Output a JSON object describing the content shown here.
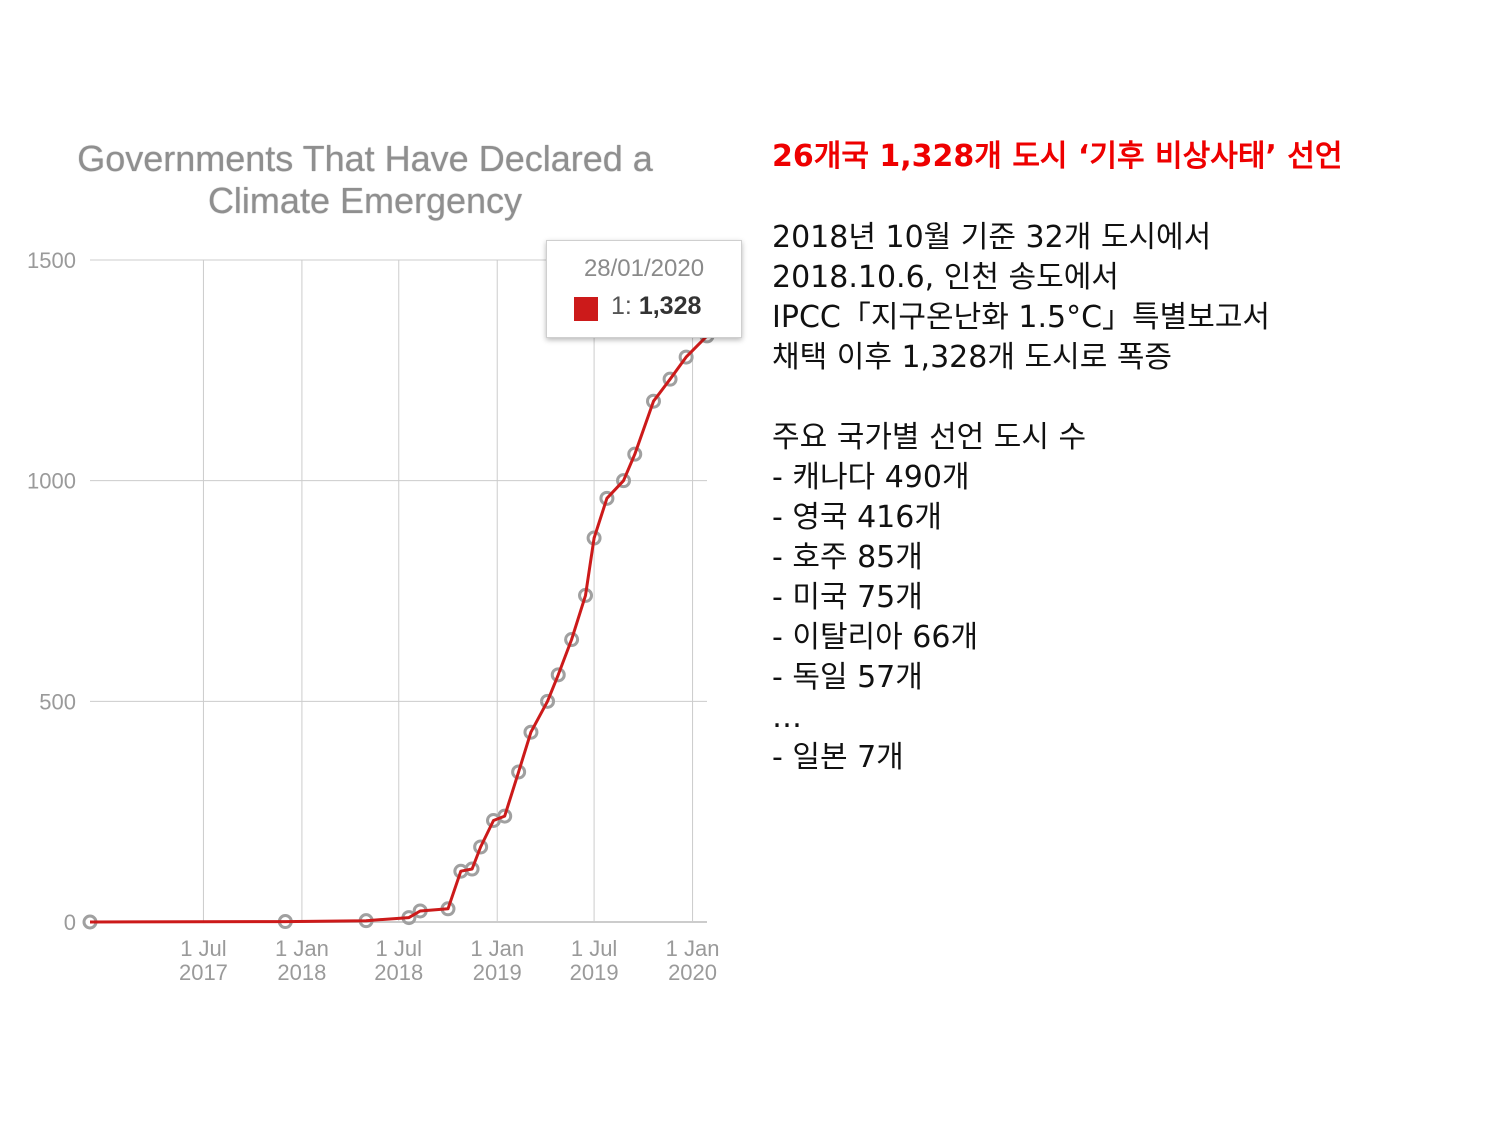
{
  "chart": {
    "title_line1": "Governments That Have Declared a",
    "title_line2": "Climate Emergency",
    "tooltip": {
      "date": "28/01/2020",
      "series": "1:",
      "value": "1,328"
    },
    "colors": {
      "line": "#cc1a1a",
      "points": "#a0a0a0",
      "grid": "#cccccc",
      "tick_text": "#9a9a9a"
    }
  },
  "chart_data": {
    "type": "line",
    "title": "Governments That Have Declared a Climate Emergency",
    "xlabel": "",
    "ylabel": "",
    "ylim": [
      0,
      1500
    ],
    "yticks": [
      0,
      500,
      1000,
      1500
    ],
    "ytick_labels": [
      "0",
      "500",
      "1000",
      "1500"
    ],
    "xlim": [
      "2016-12-01",
      "2020-01-28"
    ],
    "xticks": [
      "2017-07-01",
      "2018-01-01",
      "2018-07-01",
      "2019-01-01",
      "2019-07-01",
      "2020-01-01"
    ],
    "xtick_labels": [
      [
        "1 Jul",
        "2017"
      ],
      [
        "1 Jan",
        "2018"
      ],
      [
        "1 Jul",
        "2018"
      ],
      [
        "1 Jan",
        "2019"
      ],
      [
        "1 Jul",
        "2019"
      ],
      [
        "1 Jan",
        "2020"
      ]
    ],
    "grid": true,
    "legend": "none",
    "series": [
      {
        "name": "1",
        "x": [
          "2016-12-01",
          "2017-12-01",
          "2018-05-01",
          "2018-07-20",
          "2018-08-10",
          "2018-10-01",
          "2018-10-25",
          "2018-11-15",
          "2018-12-01",
          "2018-12-25",
          "2019-01-15",
          "2019-02-10",
          "2019-03-05",
          "2019-04-05",
          "2019-04-25",
          "2019-05-20",
          "2019-06-15",
          "2019-07-01",
          "2019-07-25",
          "2019-08-25",
          "2019-09-15",
          "2019-10-20",
          "2019-11-20",
          "2019-12-20",
          "2020-01-28"
        ],
        "values": [
          0,
          1,
          3,
          10,
          25,
          30,
          115,
          120,
          170,
          230,
          240,
          340,
          430,
          500,
          560,
          640,
          740,
          870,
          960,
          1000,
          1060,
          1180,
          1230,
          1280,
          1328
        ]
      }
    ]
  },
  "text": {
    "headline": "26개국 1,328개 도시 ‘기후 비상사태’ 선언",
    "intro": [
      "2018년 10월 기준 32개 도시에서",
      "2018.10.6, 인천 송도에서",
      "IPCC「지구온난화 1.5°C」특별보고서",
      "채택 이후 1,328개 도시로 폭증"
    ],
    "countries": [
      "주요 국가별 선언 도시 수",
      "- 캐나다 490개",
      "- 영국 416개",
      "- 호주 85개",
      "- 미국 75개",
      "- 이탈리아 66개",
      "- 독일 57개",
      "…",
      "- 일본 7개"
    ]
  }
}
